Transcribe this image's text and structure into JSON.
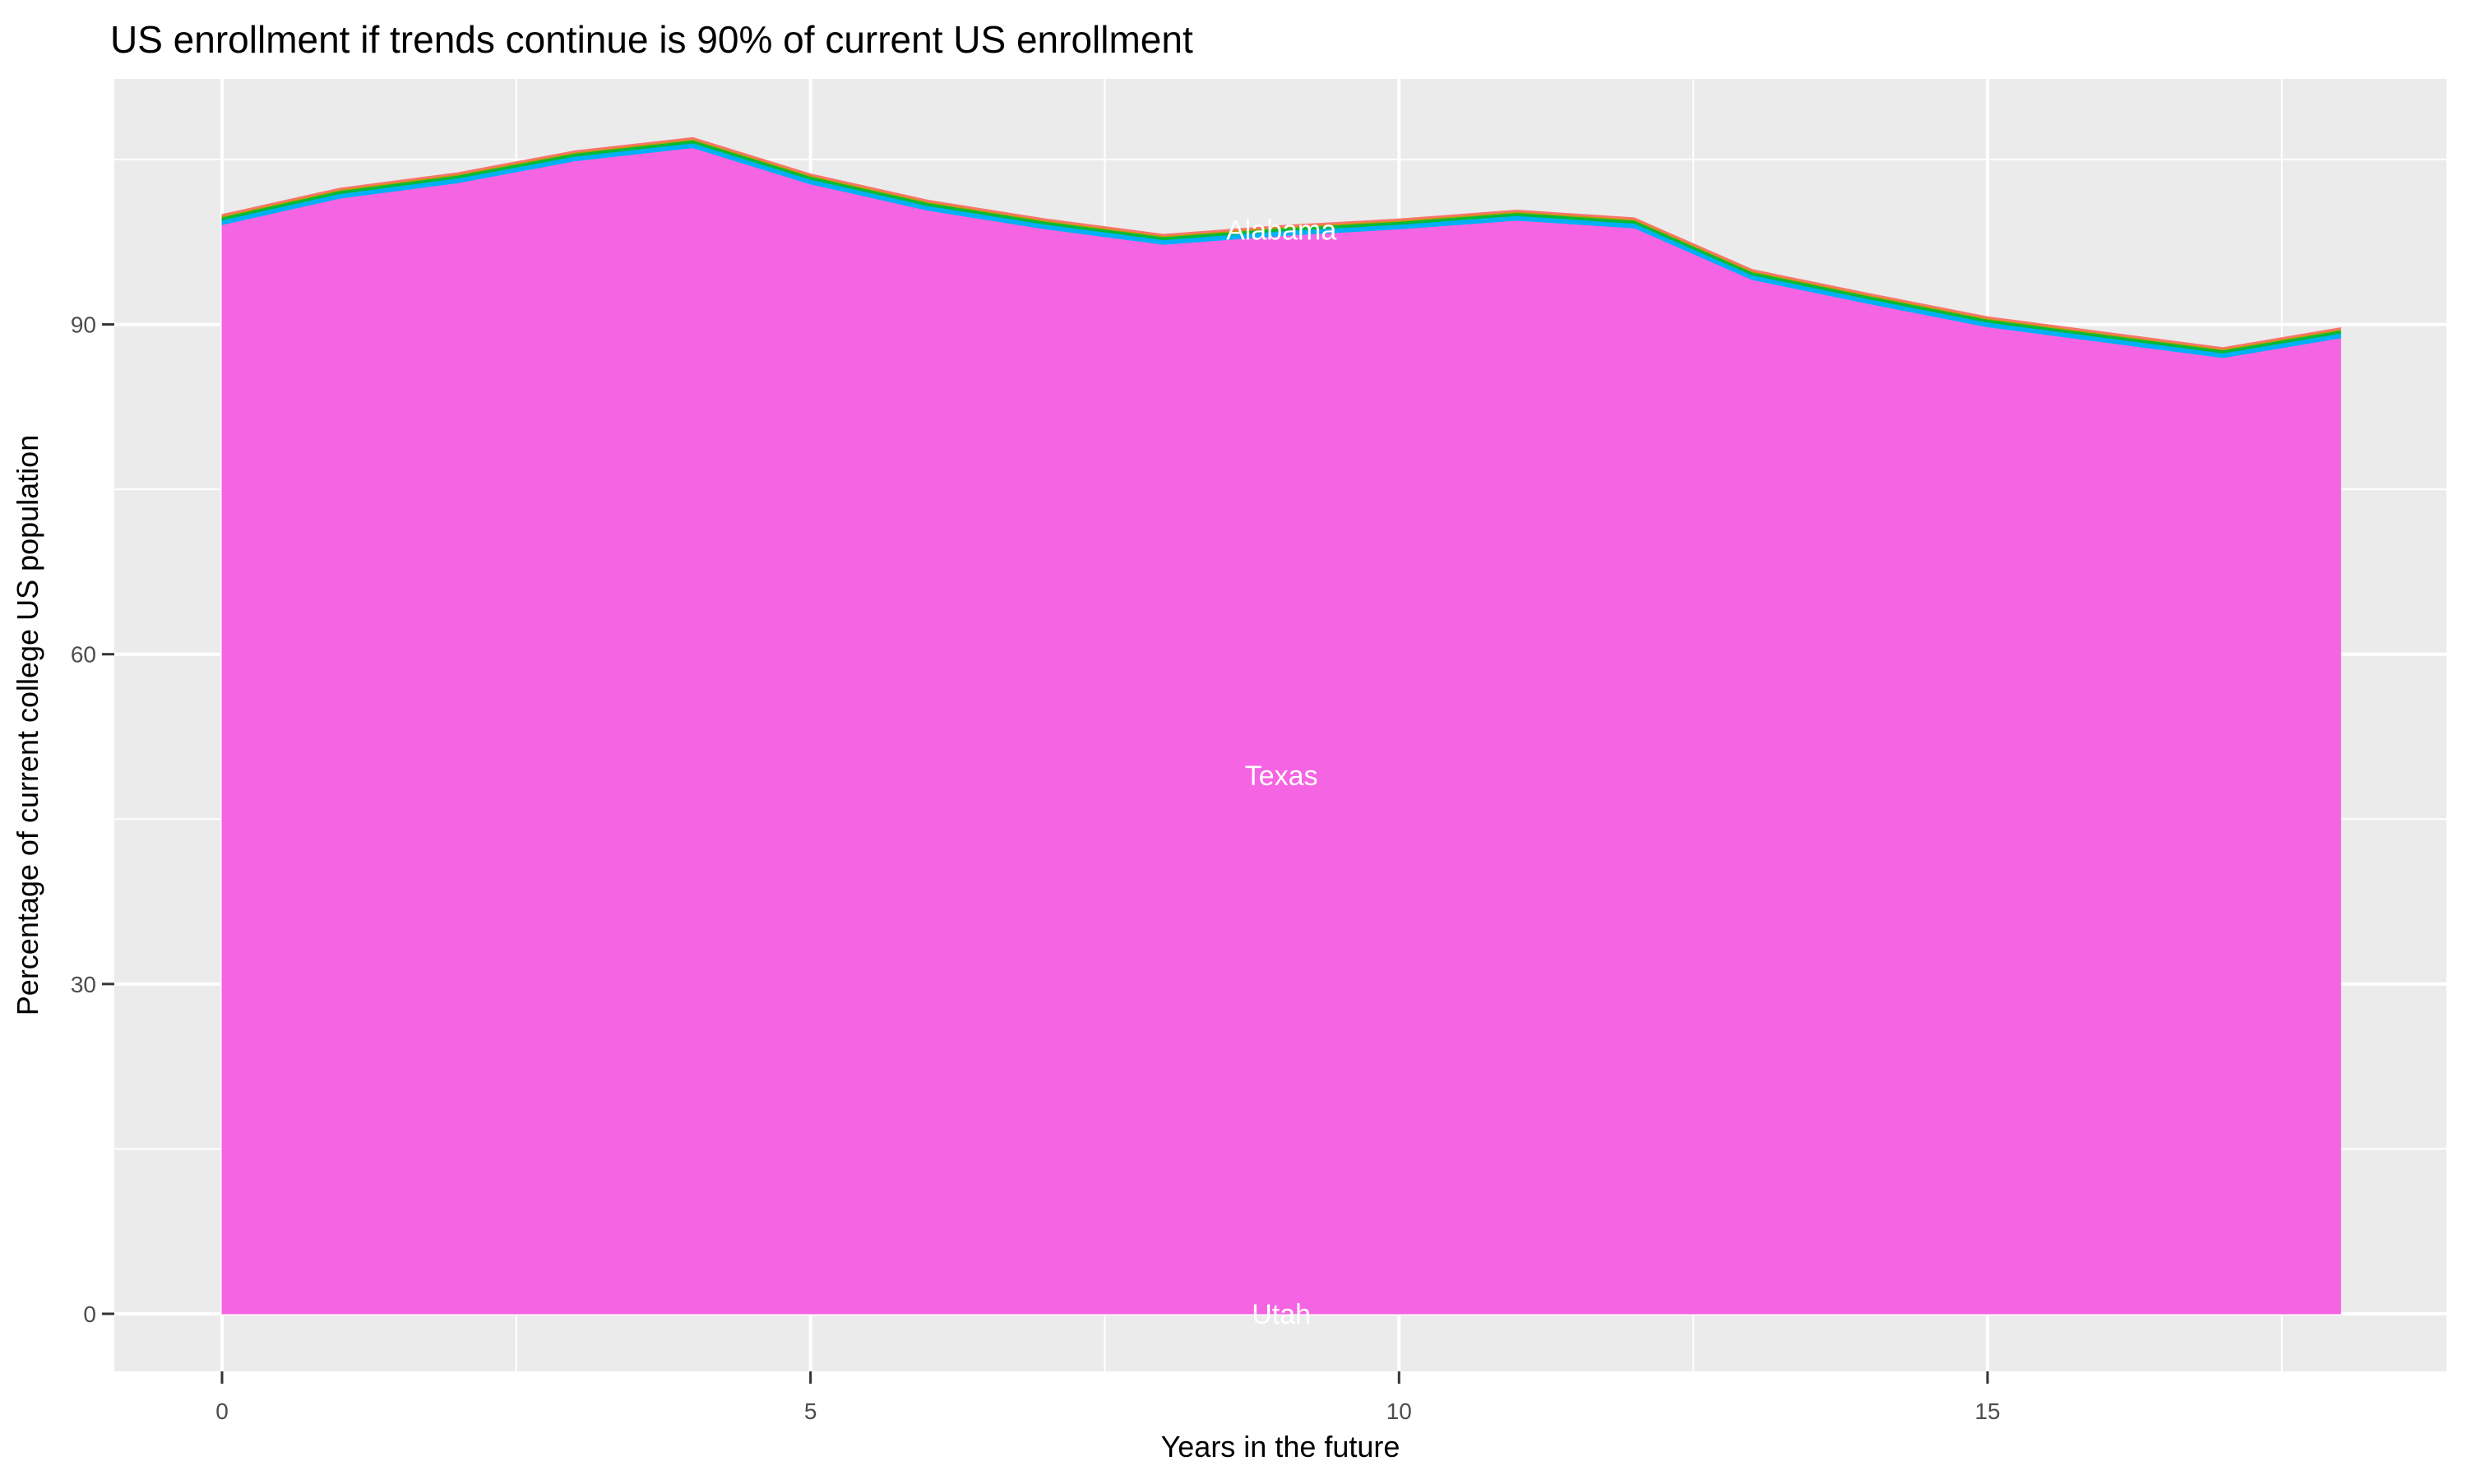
{
  "title": "US enrollment if trends continue is 90% of current US enrollment",
  "axes": {
    "x": {
      "label": "Years in the future",
      "major_ticks": [
        0,
        5,
        10,
        15
      ],
      "minor_ticks": [
        2.5,
        7.5,
        12.5,
        17.5
      ],
      "range": [
        -0.9,
        18.9
      ]
    },
    "y": {
      "label": "Percentage of current college US population",
      "major_ticks": [
        0,
        30,
        60,
        90
      ],
      "minor_ticks": [
        15,
        45,
        75,
        105
      ],
      "range": [
        -5.4,
        112.4
      ]
    }
  },
  "colors": {
    "panel_background": "#ebebeb",
    "gridline": "#ffffff",
    "tick_mark": "#333333",
    "tick_text": "#4d4d4d",
    "title_text": "#000000",
    "band_salmon": "#F8766D",
    "band_gold": "#B79F00",
    "band_green": "#00BA38",
    "band_blue": "#00B0F6",
    "band_magenta": "#F564E3",
    "area_label_text": "#ffffff"
  },
  "chart_data": {
    "type": "area",
    "stacked": true,
    "title": "US enrollment if trends continue is 90% of current US enrollment",
    "xlabel": "Years in the future",
    "ylabel": "Percentage of current college US population",
    "xlim": [
      -0.9,
      18.9
    ],
    "ylim": [
      -5.4,
      112.4
    ],
    "grid": "white major and minor gridlines on gray panel, no legend",
    "x": [
      0,
      1,
      2,
      3,
      4,
      5,
      6,
      7,
      8,
      9,
      10,
      11,
      12,
      13,
      14,
      15,
      16,
      17,
      18
    ],
    "stack_total": [
      100.0,
      102.4,
      103.8,
      105.8,
      107.0,
      103.7,
      101.3,
      99.6,
      98.2,
      99.0,
      99.6,
      100.4,
      99.7,
      95.0,
      92.8,
      90.7,
      89.3,
      87.9,
      89.7
    ],
    "bands_top_to_bottom": [
      {
        "label": "unlabeled thin band (topmost, salmon)",
        "color": "#F8766D",
        "offset_below_total": 0.0,
        "thickness": 0.12
      },
      {
        "label": "unlabeled thin band (gold)",
        "color": "#B79F00",
        "offset_below_total": 0.12,
        "thickness": 0.12
      },
      {
        "label": "unlabeled thin band (green)",
        "color": "#00BA38",
        "offset_below_total": 0.24,
        "thickness": 0.26
      },
      {
        "label": "unlabeled thin band (sky blue)",
        "color": "#00B0F6",
        "offset_below_total": 0.5,
        "thickness": 0.42
      },
      {
        "label": "Texas (dominant magenta band, reaches y=0)",
        "color": "#F564E3",
        "offset_below_total": 0.92,
        "thickness": "remainder-to-zero"
      }
    ],
    "bottom_band_note": "Utah band sits at the very bottom with value ~0 (not visibly thick)",
    "area_labels": [
      {
        "text": "Alabama",
        "x": 9,
        "y": 98.6
      },
      {
        "text": "Texas",
        "x": 9,
        "y": 49.0
      },
      {
        "text": "Utah",
        "x": 9,
        "y": 0.0
      }
    ]
  }
}
